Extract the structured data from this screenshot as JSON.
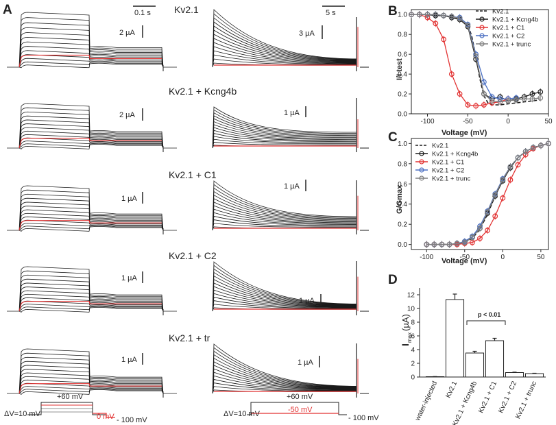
{
  "panel_labels": [
    "A",
    "B",
    "C",
    "D"
  ],
  "traces": {
    "rows": [
      {
        "title": "Kv2.1",
        "left_scale": "2 µA",
        "right_scale": "3 µA"
      },
      {
        "title": "Kv2.1 + Kcng4b",
        "left_scale": "2 µA",
        "right_scale": "1 µA"
      },
      {
        "title": "Kv2.1 + C1",
        "left_scale": "1 µA",
        "right_scale": "1 µA"
      },
      {
        "title": "Kv2.1 + C2",
        "left_scale": "1 µA",
        "right_scale": "1 µA"
      },
      {
        "title": "Kv2.1 + tr",
        "left_scale": "1 µA",
        "right_scale": "1 µA"
      }
    ],
    "left_time_scale": "0.1 s",
    "right_time_scale": "5 s",
    "protocol_left": {
      "step": "ΔV=10 mV",
      "top": "+60 mV",
      "test": "0 mV",
      "hold": "- 100 mV"
    },
    "protocol_right": {
      "step": "ΔV=10 mV",
      "top": "+60 mV",
      "test": "-50 mV",
      "hold": "- 100 mV"
    }
  },
  "colors": {
    "kv21": "#1a1a1a",
    "kcng4b": "#1a1a1a",
    "c1": "#e23232",
    "c2": "#4a6fc2",
    "trunc": "#7f7f7f",
    "red_trace": "#e23232"
  },
  "chart_data": [
    {
      "panel": "B",
      "type": "line",
      "xlabel": "Voltage (mV)",
      "ylabel": "I/I test",
      "xlim": [
        -120,
        50
      ],
      "ylim": [
        0,
        1.05
      ],
      "xticks": [
        "-100",
        "-50",
        "0",
        "50"
      ],
      "yticks": [
        "0.0",
        "0.2",
        "0.4",
        "0.6",
        "0.8",
        "1.0"
      ],
      "legend": [
        "Kv2.1",
        "Kv2.1 + Kcng4b",
        "Kv2.1 + C1",
        "Kv2.1 + C2",
        "Kv2.1 + trunc"
      ],
      "legend_placement": "top-right",
      "series": [
        {
          "name": "Kv2.1",
          "style": "dashed",
          "x": [
            -120,
            -110,
            -100,
            -90,
            -80,
            -70,
            -60,
            -50,
            -45,
            -40,
            -35,
            -30,
            -25,
            -20,
            -10,
            0,
            10,
            20,
            30,
            40
          ],
          "y": [
            1.0,
            1.0,
            1.0,
            0.99,
            0.99,
            0.98,
            0.96,
            0.9,
            0.78,
            0.58,
            0.35,
            0.18,
            0.11,
            0.09,
            0.09,
            0.1,
            0.11,
            0.12,
            0.13,
            0.14
          ]
        },
        {
          "name": "Kv2.1 + Kcng4b",
          "x": [
            -120,
            -110,
            -100,
            -90,
            -80,
            -70,
            -60,
            -50,
            -40,
            -30,
            -20,
            -10,
            0,
            10,
            20,
            30,
            40
          ],
          "y": [
            1.0,
            1.0,
            1.0,
            0.99,
            0.99,
            0.97,
            0.95,
            0.88,
            0.55,
            0.2,
            0.15,
            0.17,
            0.13,
            0.15,
            0.17,
            0.2,
            0.22
          ]
        },
        {
          "name": "Kv2.1 + C1",
          "x": [
            -120,
            -110,
            -100,
            -90,
            -80,
            -70,
            -60,
            -50,
            -40,
            -30,
            -20,
            -10,
            0
          ],
          "y": [
            1.0,
            1.0,
            0.97,
            0.91,
            0.75,
            0.4,
            0.2,
            0.09,
            0.08,
            0.09,
            0.11,
            0.12,
            0.15
          ]
        },
        {
          "name": "Kv2.1 + C2",
          "x": [
            -120,
            -110,
            -100,
            -90,
            -80,
            -70,
            -60,
            -50,
            -40,
            -30,
            -20,
            -10,
            0,
            10
          ],
          "y": [
            1.0,
            1.0,
            1.0,
            1.0,
            0.99,
            0.98,
            0.97,
            0.9,
            0.6,
            0.32,
            0.17,
            0.15,
            0.15,
            0.16
          ]
        },
        {
          "name": "Kv2.1 + trunc",
          "x": [
            -120,
            -110,
            -100,
            -90,
            -80,
            -70,
            -60,
            -50,
            -40,
            -30,
            -20,
            -10,
            0,
            10,
            20,
            30,
            40
          ],
          "y": [
            1.0,
            1.0,
            1.0,
            1.0,
            0.99,
            0.98,
            0.96,
            0.89,
            0.58,
            0.2,
            0.13,
            0.12,
            0.13,
            0.14,
            0.15,
            0.15,
            0.16
          ]
        }
      ]
    },
    {
      "panel": "C",
      "type": "line",
      "xlabel": "Voltage (mV)",
      "ylabel": "G/Gmax",
      "xlim": [
        -120,
        60
      ],
      "ylim": [
        -0.05,
        1.05
      ],
      "xticks": [
        "-100",
        "-50",
        "0",
        "50"
      ],
      "yticks": [
        "0.0",
        "0.2",
        "0.4",
        "0.6",
        "0.8",
        "1.0"
      ],
      "legend": [
        "Kv2.1",
        "Kv2.1 + Kcng4b",
        "Kv2.1 + C1",
        "Kv2.1 + C2",
        "Kv2.1 + trunc"
      ],
      "legend_placement": "top-left",
      "series": [
        {
          "name": "Kv2.1",
          "style": "dashed",
          "x": [
            -100,
            -90,
            -80,
            -70,
            -60,
            -50,
            -40,
            -30,
            -20,
            -10,
            0,
            10,
            20,
            30,
            40,
            50,
            60
          ],
          "y": [
            0.0,
            0.0,
            0.0,
            0.0,
            0.01,
            0.02,
            0.06,
            0.15,
            0.3,
            0.48,
            0.64,
            0.77,
            0.86,
            0.92,
            0.96,
            0.98,
            1.0
          ]
        },
        {
          "name": "Kv2.1 + Kcng4b",
          "x": [
            -100,
            -90,
            -80,
            -70,
            -60,
            -50,
            -40,
            -30,
            -20,
            -10,
            0,
            10,
            20,
            30,
            40,
            50,
            60
          ],
          "y": [
            0.0,
            0.0,
            0.0,
            0.0,
            0.01,
            0.02,
            0.07,
            0.16,
            0.31,
            0.48,
            0.63,
            0.76,
            0.86,
            0.92,
            0.96,
            0.98,
            1.0
          ]
        },
        {
          "name": "Kv2.1 + C1",
          "x": [
            -100,
            -90,
            -80,
            -70,
            -60,
            -50,
            -40,
            -30,
            -20,
            -10,
            0,
            10,
            20,
            30,
            40,
            50,
            60
          ],
          "y": [
            0.0,
            0.0,
            0.0,
            0.0,
            0.0,
            0.01,
            0.02,
            0.06,
            0.14,
            0.28,
            0.46,
            0.64,
            0.79,
            0.89,
            0.95,
            0.98,
            1.0
          ]
        },
        {
          "name": "Kv2.1 + C2",
          "x": [
            -100,
            -90,
            -80,
            -70,
            -60,
            -50,
            -40,
            -30,
            -20,
            -10,
            0,
            10,
            20,
            30,
            40,
            50,
            60
          ],
          "y": [
            0.0,
            0.0,
            0.0,
            0.0,
            0.01,
            0.03,
            0.08,
            0.18,
            0.33,
            0.5,
            0.65,
            0.77,
            0.86,
            0.92,
            0.96,
            0.98,
            1.0
          ]
        },
        {
          "name": "Kv2.1 + trunc",
          "x": [
            -100,
            -90,
            -80,
            -70,
            -60,
            -50,
            -40,
            -30,
            -20,
            -10,
            0,
            10,
            20,
            30,
            40,
            50,
            60
          ],
          "y": [
            0.0,
            0.0,
            0.0,
            0.0,
            0.01,
            0.02,
            0.07,
            0.16,
            0.32,
            0.49,
            0.64,
            0.77,
            0.86,
            0.92,
            0.96,
            0.98,
            1.0
          ]
        }
      ]
    },
    {
      "panel": "D",
      "type": "bar",
      "ylabel_main": "I",
      "ylabel_sub": "max",
      "ylabel_unit": "(µA)",
      "ylim": [
        0,
        13
      ],
      "yticks": [
        "0",
        "2",
        "4",
        "6",
        "8",
        "10",
        "12"
      ],
      "categories": [
        "water-injected",
        "Kv2.1",
        "Kv2.1 + Kcng4b",
        "Kv2.1 + C1",
        "Kv2.1 + C2",
        "Kv2.1 + trunc"
      ],
      "values": [
        0.05,
        11.3,
        3.5,
        5.3,
        0.65,
        0.5
      ],
      "errors": [
        0.02,
        0.8,
        0.25,
        0.35,
        0.06,
        0.05
      ],
      "annotation": "p < 0.01"
    }
  ]
}
